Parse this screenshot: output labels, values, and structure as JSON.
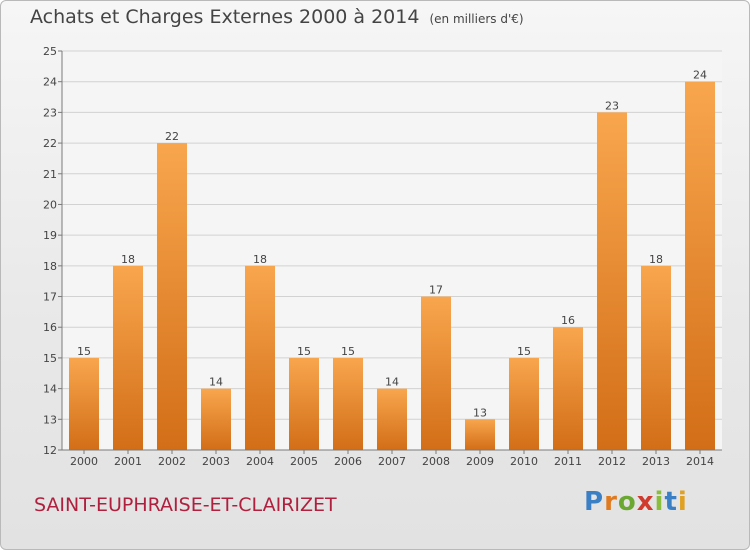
{
  "header": {
    "title": "Achats et Charges Externes 2000 à 2014",
    "unit": "(en milliers d'€)"
  },
  "footer": {
    "commune": "SAINT-EUPHRAISE-ET-CLAIRIZET",
    "brand": "Proxiti",
    "brand_colors": [
      "#3b7fc4",
      "#e07a1f",
      "#6aa832",
      "#d13b2e",
      "#8bbd3c",
      "#3b7fc4",
      "#e0a020"
    ]
  },
  "colors": {
    "bar_top": "#f8a64e",
    "bar_bottom": "#d26e17",
    "grid": "#d2d2d2",
    "axis": "#7a7a7a",
    "label": "#444444"
  },
  "chart_data": {
    "type": "bar",
    "title": "Achats et Charges Externes 2000 à 2014",
    "subtitle": "(en milliers d'€)",
    "categories": [
      "2000",
      "2001",
      "2002",
      "2003",
      "2004",
      "2005",
      "2006",
      "2007",
      "2008",
      "2009",
      "2010",
      "2011",
      "2012",
      "2013",
      "2014"
    ],
    "values": [
      15,
      18,
      22,
      14,
      18,
      15,
      15,
      14,
      17,
      13,
      15,
      16,
      23,
      18,
      24
    ],
    "ylim": [
      12,
      25
    ],
    "yticks": [
      12,
      13,
      14,
      15,
      16,
      17,
      18,
      19,
      20,
      21,
      22,
      23,
      24,
      25
    ],
    "grid": true,
    "data_labels": true
  }
}
